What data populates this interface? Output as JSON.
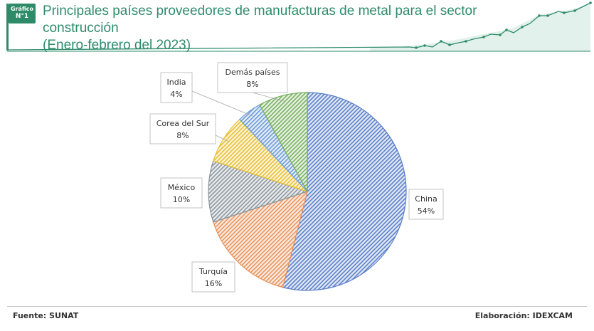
{
  "badge": {
    "line1": "Gráfico",
    "line2": "N°1"
  },
  "header": {
    "title_line1": "Principales países proveedores de manufacturas de metal para el sector construcción",
    "title_line2": "(Enero-febrero del 2023)"
  },
  "chart_data": {
    "type": "pie",
    "title": "Principales países proveedores de manufacturas de metal para el sector construcción (Enero-febrero del 2023)",
    "unit": "%",
    "slices": [
      {
        "label": "China",
        "value": 54,
        "display": "54%",
        "color": "#5b7fc9"
      },
      {
        "label": "Turquía",
        "value": 16,
        "display": "16%",
        "color": "#e8925a"
      },
      {
        "label": "México",
        "value": 10,
        "display": "10%",
        "color": "#8a959c"
      },
      {
        "label": "Corea del Sur",
        "value": 8,
        "display": "8%",
        "color": "#e8bf30"
      },
      {
        "label": "India",
        "value": 4,
        "display": "4%",
        "color": "#6b9ad6"
      },
      {
        "label": "Demás países",
        "value": 8,
        "display": "8%",
        "color": "#78b060"
      }
    ]
  },
  "footer": {
    "source": "Fuente: SUNAT",
    "elaboration": "Elaboración: IDEXCAM"
  }
}
